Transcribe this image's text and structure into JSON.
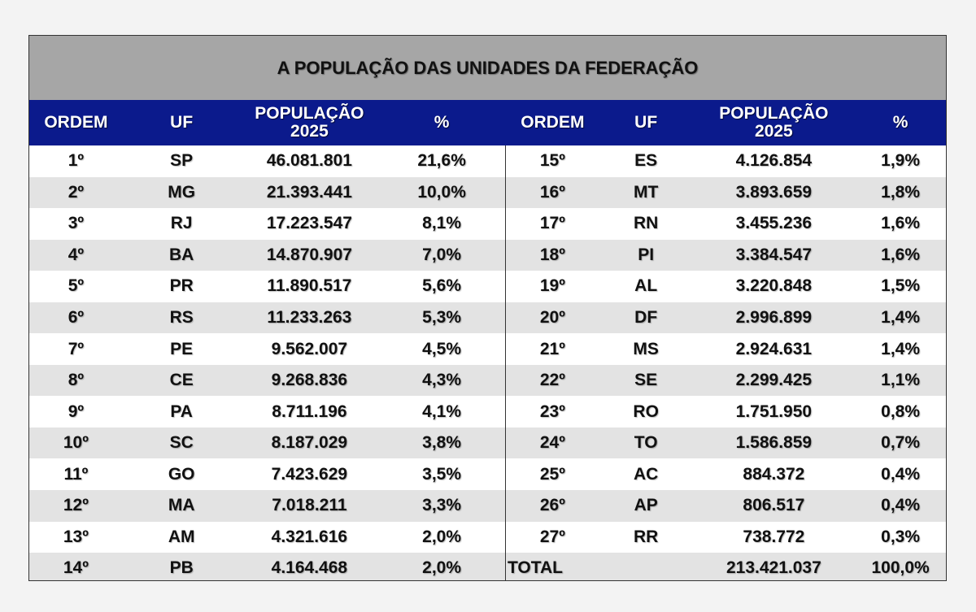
{
  "title": "A POPULAÇÃO DAS UNIDADES DA FEDERAÇÃO",
  "headers": {
    "ordem": "ORDEM",
    "uf": "UF",
    "populacao_line1": "POPULAÇÃO",
    "populacao_line2": "2025",
    "pct": "%"
  },
  "colors": {
    "title_bg": "#a6a6a6",
    "header_bg": "#0b1a8c",
    "row_alt_bg": "#e3e3e3"
  },
  "rows": [
    {
      "left": {
        "ordem": "1º",
        "uf": "SP",
        "pop": "46.081.801",
        "pct": "21,6%"
      },
      "right": {
        "ordem": "15º",
        "uf": "ES",
        "pop": "4.126.854",
        "pct": "1,9%"
      }
    },
    {
      "left": {
        "ordem": "2º",
        "uf": "MG",
        "pop": "21.393.441",
        "pct": "10,0%"
      },
      "right": {
        "ordem": "16º",
        "uf": "MT",
        "pop": "3.893.659",
        "pct": "1,8%"
      }
    },
    {
      "left": {
        "ordem": "3º",
        "uf": "RJ",
        "pop": "17.223.547",
        "pct": "8,1%"
      },
      "right": {
        "ordem": "17º",
        "uf": "RN",
        "pop": "3.455.236",
        "pct": "1,6%"
      }
    },
    {
      "left": {
        "ordem": "4º",
        "uf": "BA",
        "pop": "14.870.907",
        "pct": "7,0%"
      },
      "right": {
        "ordem": "18º",
        "uf": "PI",
        "pop": "3.384.547",
        "pct": "1,6%"
      }
    },
    {
      "left": {
        "ordem": "5º",
        "uf": "PR",
        "pop": "11.890.517",
        "pct": "5,6%"
      },
      "right": {
        "ordem": "19º",
        "uf": "AL",
        "pop": "3.220.848",
        "pct": "1,5%"
      }
    },
    {
      "left": {
        "ordem": "6º",
        "uf": "RS",
        "pop": "11.233.263",
        "pct": "5,3%"
      },
      "right": {
        "ordem": "20º",
        "uf": "DF",
        "pop": "2.996.899",
        "pct": "1,4%"
      }
    },
    {
      "left": {
        "ordem": "7º",
        "uf": "PE",
        "pop": "9.562.007",
        "pct": "4,5%"
      },
      "right": {
        "ordem": "21º",
        "uf": "MS",
        "pop": "2.924.631",
        "pct": "1,4%"
      }
    },
    {
      "left": {
        "ordem": "8º",
        "uf": "CE",
        "pop": "9.268.836",
        "pct": "4,3%"
      },
      "right": {
        "ordem": "22º",
        "uf": "SE",
        "pop": "2.299.425",
        "pct": "1,1%"
      }
    },
    {
      "left": {
        "ordem": "9º",
        "uf": "PA",
        "pop": "8.711.196",
        "pct": "4,1%"
      },
      "right": {
        "ordem": "23º",
        "uf": "RO",
        "pop": "1.751.950",
        "pct": "0,8%"
      }
    },
    {
      "left": {
        "ordem": "10º",
        "uf": "SC",
        "pop": "8.187.029",
        "pct": "3,8%"
      },
      "right": {
        "ordem": "24º",
        "uf": "TO",
        "pop": "1.586.859",
        "pct": "0,7%"
      }
    },
    {
      "left": {
        "ordem": "11º",
        "uf": "GO",
        "pop": "7.423.629",
        "pct": "3,5%"
      },
      "right": {
        "ordem": "25º",
        "uf": "AC",
        "pop": "884.372",
        "pct": "0,4%"
      }
    },
    {
      "left": {
        "ordem": "12º",
        "uf": "MA",
        "pop": "7.018.211",
        "pct": "3,3%"
      },
      "right": {
        "ordem": "26º",
        "uf": "AP",
        "pop": "806.517",
        "pct": "0,4%"
      }
    },
    {
      "left": {
        "ordem": "13º",
        "uf": "AM",
        "pop": "4.321.616",
        "pct": "2,0%"
      },
      "right": {
        "ordem": "27º",
        "uf": "RR",
        "pop": "738.772",
        "pct": "0,3%"
      }
    },
    {
      "left": {
        "ordem": "14º",
        "uf": "PB",
        "pop": "4.164.468",
        "pct": "2,0%"
      },
      "right": {
        "ordem": "TOTAL",
        "uf": "",
        "pop": "213.421.037",
        "pct": "100,0%"
      }
    }
  ]
}
